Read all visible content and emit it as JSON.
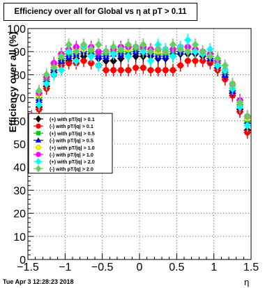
{
  "chart_data": {
    "type": "scatter",
    "title": "Efficiency over all for Global vs   η at pT > 0.11",
    "xlabel": "η",
    "ylabel": "Efficiency over all (%)",
    "footer": "Tue Apr  3 12:28:23 2018",
    "xlim": [
      -1.5,
      1.5
    ],
    "ylim": [
      0,
      100
    ],
    "xticks": [
      "−1.5",
      "−1",
      "−0.5",
      "0",
      "0.5",
      "1",
      "1.5"
    ],
    "yticks": [
      "0",
      "10",
      "20",
      "30",
      "40",
      "50",
      "60",
      "70",
      "80",
      "90",
      "100"
    ],
    "grid": true,
    "legend_position": "left-middle",
    "series": [
      {
        "name": "(+) with pT/|q| > 0.1",
        "color": "#000000",
        "marker": "diamond",
        "x": [
          -1.45,
          -1.35,
          -1.25,
          -1.15,
          -1.05,
          -0.95,
          -0.85,
          -0.75,
          -0.65,
          -0.55,
          -0.45,
          -0.35,
          -0.25,
          -0.15,
          -0.05,
          0.05,
          0.15,
          0.25,
          0.35,
          0.45,
          0.55,
          0.65,
          0.75,
          0.85,
          0.95,
          1.05,
          1.15,
          1.25,
          1.35,
          1.45
        ],
        "y": [
          55,
          66,
          75,
          81,
          85,
          86,
          87,
          88,
          88,
          87,
          86,
          86,
          87,
          88,
          88,
          88,
          88,
          87,
          87,
          88,
          89,
          89,
          89,
          88,
          86,
          83,
          79,
          72,
          65,
          56
        ]
      },
      {
        "name": "(-) with pT/|q| > 0.1",
        "color": "#ff0000",
        "marker": "circle",
        "x": [
          -1.45,
          -1.35,
          -1.25,
          -1.15,
          -1.05,
          -0.95,
          -0.85,
          -0.75,
          -0.65,
          -0.55,
          -0.45,
          -0.35,
          -0.25,
          -0.15,
          -0.05,
          0.05,
          0.15,
          0.25,
          0.35,
          0.45,
          0.55,
          0.65,
          0.75,
          0.85,
          0.95,
          1.05,
          1.15,
          1.25,
          1.35,
          1.45
        ],
        "y": [
          56,
          65,
          74,
          80,
          84,
          85,
          85,
          86,
          85,
          84,
          82,
          82,
          82,
          82,
          83,
          83,
          82,
          82,
          82,
          82,
          84,
          86,
          86,
          86,
          85,
          82,
          78,
          71,
          64,
          55
        ]
      },
      {
        "name": "(+) with pT/|q| > 0.5",
        "color": "#00cc00",
        "marker": "square",
        "x": [
          -1.45,
          -1.35,
          -1.25,
          -1.15,
          -1.05,
          -0.95,
          -0.85,
          -0.75,
          -0.65,
          -0.55,
          -0.45,
          -0.35,
          -0.25,
          -0.15,
          -0.05,
          0.05,
          0.15,
          0.25,
          0.35,
          0.45,
          0.55,
          0.65,
          0.75,
          0.85,
          0.95,
          1.05,
          1.15,
          1.25,
          1.35,
          1.45
        ],
        "y": [
          60,
          70,
          78,
          83,
          87,
          89,
          90,
          90,
          90,
          89,
          89,
          90,
          90,
          90,
          91,
          91,
          90,
          89,
          89,
          90,
          90,
          90,
          90,
          89,
          88,
          85,
          81,
          74,
          67,
          60
        ]
      },
      {
        "name": "(-) with pT/|q| > 0.5",
        "color": "#0000ff",
        "marker": "triangle",
        "x": [
          -1.45,
          -1.35,
          -1.25,
          -1.15,
          -1.05,
          -0.95,
          -0.85,
          -0.75,
          -0.65,
          -0.55,
          -0.45,
          -0.35,
          -0.25,
          -0.15,
          -0.05,
          0.05,
          0.15,
          0.25,
          0.35,
          0.45,
          0.55,
          0.65,
          0.75,
          0.85,
          0.95,
          1.05,
          1.15,
          1.25,
          1.35,
          1.45
        ],
        "y": [
          59,
          69,
          77,
          82,
          86,
          88,
          89,
          90,
          89,
          88,
          88,
          89,
          89,
          89,
          90,
          90,
          89,
          88,
          88,
          89,
          90,
          90,
          90,
          89,
          87,
          84,
          80,
          73,
          66,
          59
        ]
      },
      {
        "name": "(+) with pT/|q| > 1.0",
        "color": "#ffff00",
        "marker": "circle",
        "x": [
          -1.45,
          -1.35,
          -1.25,
          -1.15,
          -1.05,
          -0.95,
          -0.85,
          -0.75,
          -0.65,
          -0.55,
          -0.45,
          -0.35,
          -0.25,
          -0.15,
          -0.05,
          0.05,
          0.15,
          0.25,
          0.35,
          0.45,
          0.55,
          0.65,
          0.75,
          0.85,
          0.95,
          1.05,
          1.15,
          1.25,
          1.35,
          1.45
        ],
        "y": [
          61,
          71,
          79,
          84,
          88,
          90,
          91,
          91,
          91,
          90,
          90,
          91,
          91,
          91,
          92,
          92,
          91,
          90,
          90,
          91,
          91,
          91,
          91,
          90,
          89,
          86,
          82,
          75,
          68,
          61
        ]
      },
      {
        "name": "(-) with pT/|q| > 1.0",
        "color": "#ff00ff",
        "marker": "circle",
        "x": [
          -1.45,
          -1.35,
          -1.25,
          -1.15,
          -1.05,
          -0.95,
          -0.85,
          -0.75,
          -0.65,
          -0.55,
          -0.45,
          -0.35,
          -0.25,
          -0.15,
          -0.05,
          0.05,
          0.15,
          0.25,
          0.35,
          0.45,
          0.55,
          0.65,
          0.75,
          0.85,
          0.95,
          1.05,
          1.15,
          1.25,
          1.35,
          1.45
        ],
        "y": [
          62,
          72,
          79,
          85,
          89,
          91,
          92,
          92,
          92,
          90,
          90,
          91,
          92,
          92,
          92,
          92,
          91,
          91,
          91,
          91,
          92,
          92,
          91,
          90,
          89,
          86,
          82,
          76,
          69,
          62
        ]
      },
      {
        "name": "(+) with pT/|q| > 2.0",
        "color": "#00ffff",
        "marker": "diamond",
        "x": [
          -1.45,
          -1.35,
          -1.25,
          -1.15,
          -1.05,
          -0.95,
          -0.85,
          -0.75,
          -0.65,
          -0.55,
          -0.45,
          -0.35,
          -0.25,
          -0.15,
          -0.05,
          0.05,
          0.15,
          0.25,
          0.35,
          0.45,
          0.55,
          0.65,
          0.75,
          0.85,
          0.95,
          1.05,
          1.15,
          1.25,
          1.35,
          1.45
        ],
        "y": [
          58,
          67,
          76,
          80,
          82,
          90,
          86,
          92,
          88,
          84,
          90,
          89,
          91,
          88,
          92,
          90,
          86,
          93,
          91,
          88,
          92,
          95,
          90,
          89,
          91,
          84,
          82,
          74,
          66,
          58
        ]
      },
      {
        "name": "(-) with pT/|q| > 2.0",
        "color": "#66cc66",
        "marker": "diamond",
        "x": [
          -1.45,
          -1.35,
          -1.25,
          -1.15,
          -1.05,
          -0.95,
          -0.85,
          -0.75,
          -0.65,
          -0.55,
          -0.45,
          -0.35,
          -0.25,
          -0.15,
          -0.05,
          0.05,
          0.15,
          0.25,
          0.35,
          0.45,
          0.55,
          0.65,
          0.75,
          0.85,
          0.95,
          1.05,
          1.15,
          1.25,
          1.35,
          1.45
        ],
        "y": [
          60,
          73,
          80,
          83,
          88,
          93,
          90,
          93,
          91,
          93,
          90,
          92,
          91,
          93,
          92,
          93,
          90,
          91,
          90,
          93,
          91,
          90,
          93,
          90,
          88,
          87,
          84,
          76,
          68,
          62
        ]
      }
    ]
  }
}
